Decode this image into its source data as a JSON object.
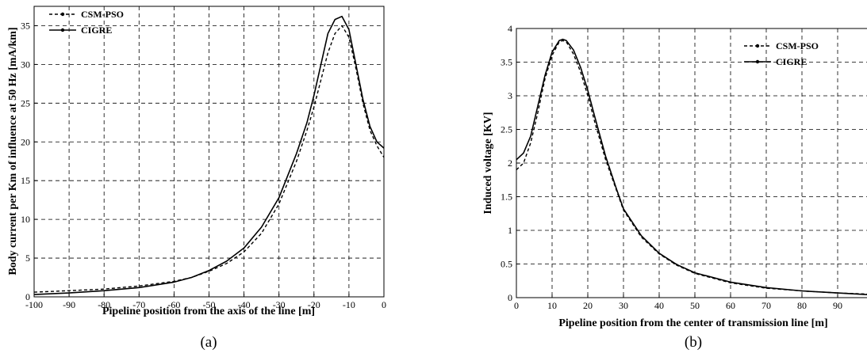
{
  "chart_data": [
    {
      "type": "line",
      "caption": "(a)",
      "xlabel": "Pipeline position from the axis of the line [m]",
      "ylabel": "Body current per Km of influence at 50 Hz  [mA/km]",
      "xlim": [
        -100,
        0
      ],
      "ylim": [
        0,
        37.5
      ],
      "xticks": [
        -100,
        -90,
        -80,
        -70,
        -60,
        -50,
        -40,
        -30,
        -20,
        -10,
        0
      ],
      "yticks": [
        0,
        5,
        10,
        15,
        20,
        25,
        30,
        35
      ],
      "grid": true,
      "legend_position": "top-left",
      "series": [
        {
          "name": "CSM-PSO",
          "style": "dashed",
          "x": [
            -100,
            -90,
            -80,
            -70,
            -60,
            -55,
            -50,
            -45,
            -40,
            -35,
            -30,
            -25,
            -22,
            -20,
            -18,
            -16,
            -14,
            -12,
            -10,
            -8,
            -6,
            -4,
            -2,
            0
          ],
          "y": [
            0.6,
            0.8,
            1.0,
            1.4,
            2.0,
            2.5,
            3.3,
            4.3,
            5.8,
            8.2,
            12.0,
            17.5,
            21.5,
            24.5,
            28.0,
            31.5,
            34.0,
            35.0,
            33.5,
            29.5,
            25.0,
            21.5,
            19.5,
            18.0
          ]
        },
        {
          "name": "CIGRE",
          "style": "solid",
          "x": [
            -100,
            -90,
            -80,
            -70,
            -60,
            -55,
            -50,
            -45,
            -40,
            -35,
            -30,
            -25,
            -22,
            -20,
            -18,
            -16,
            -14,
            -12,
            -10,
            -8,
            -6,
            -4,
            -2,
            0
          ],
          "y": [
            0.3,
            0.5,
            0.8,
            1.2,
            1.9,
            2.5,
            3.4,
            4.6,
            6.3,
            9.0,
            12.8,
            18.5,
            22.5,
            26.0,
            30.0,
            34.0,
            35.8,
            36.2,
            34.5,
            30.0,
            25.5,
            22.0,
            20.0,
            19.2
          ]
        }
      ]
    },
    {
      "type": "line",
      "caption": "(b)",
      "xlabel": "Pipeline position from the center of transmission line [m]",
      "ylabel": "Induced voltage  [KV]",
      "xlim": [
        0,
        100
      ],
      "ylim": [
        0,
        4
      ],
      "xticks": [
        0,
        10,
        20,
        30,
        40,
        50,
        60,
        70,
        80,
        90,
        100
      ],
      "yticks": [
        0,
        0.5,
        1,
        1.5,
        2,
        2.5,
        3,
        3.5,
        4
      ],
      "grid": true,
      "legend_position": "top-right",
      "series": [
        {
          "name": "CSM-PSO",
          "style": "dashed",
          "x": [
            0,
            2,
            4,
            6,
            8,
            10,
            12,
            13,
            14,
            16,
            18,
            20,
            22,
            25,
            28,
            30,
            35,
            40,
            45,
            50,
            60,
            70,
            80,
            90,
            100
          ],
          "y": [
            1.9,
            2.0,
            2.3,
            2.75,
            3.25,
            3.6,
            3.8,
            3.82,
            3.8,
            3.62,
            3.35,
            3.0,
            2.6,
            2.05,
            1.6,
            1.3,
            0.9,
            0.65,
            0.48,
            0.36,
            0.22,
            0.14,
            0.1,
            0.07,
            0.05
          ]
        },
        {
          "name": "CIGRE",
          "style": "solid",
          "x": [
            0,
            2,
            4,
            6,
            8,
            10,
            12,
            13,
            14,
            16,
            18,
            20,
            22,
            25,
            28,
            30,
            35,
            40,
            45,
            50,
            60,
            70,
            80,
            90,
            100
          ],
          "y": [
            2.05,
            2.15,
            2.4,
            2.85,
            3.3,
            3.65,
            3.82,
            3.84,
            3.82,
            3.68,
            3.42,
            3.08,
            2.68,
            2.1,
            1.62,
            1.32,
            0.92,
            0.66,
            0.49,
            0.37,
            0.23,
            0.15,
            0.1,
            0.07,
            0.04
          ]
        }
      ]
    }
  ]
}
